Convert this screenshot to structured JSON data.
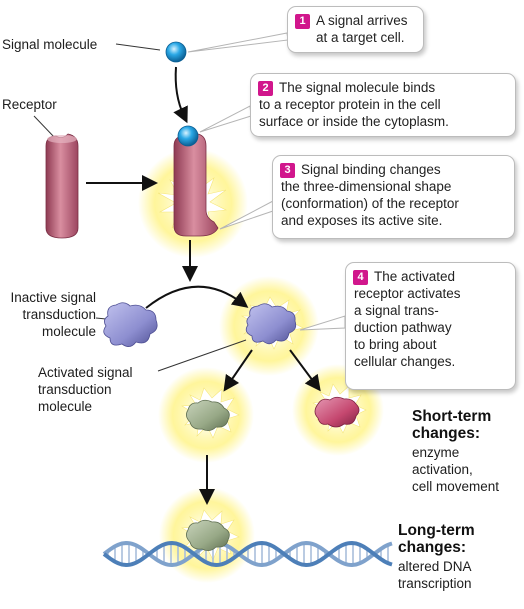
{
  "labels": {
    "signal_molecule": "Signal molecule",
    "receptor": "Receptor",
    "inactive_molecule": "Inactive signal\ntransduction\nmolecule",
    "activated_molecule": "Activated signal\ntransduction\nmolecule"
  },
  "steps": [
    {
      "num": "1",
      "text": "A signal arrives\nat a target cell."
    },
    {
      "num": "2",
      "text": "The signal molecule binds\nto a receptor protein in the cell\nsurface or inside the cytoplasm."
    },
    {
      "num": "3",
      "text": "Signal binding changes\nthe three-dimensional shape\n(conformation) of the receptor\nand exposes its active site."
    },
    {
      "num": "4",
      "text": "The activated\nreceptor activates\na signal trans-\nduction pathway\nto bring about\ncellular changes."
    }
  ],
  "short_term": {
    "heading": "Short-term\nchanges:",
    "text": "enzyme\nactivation,\ncell movement"
  },
  "long_term": {
    "heading": "Long-term\nchanges:",
    "text": "altered DNA\ntranscription"
  },
  "colors": {
    "badge": "#d1168c",
    "signal": "#2aa8e6",
    "receptor": "#c56a7e",
    "glow": "#fff27a",
    "transducer_inactive": "#8d8ed0",
    "transducer_green": "#97a886",
    "effector_pink": "#c5476f",
    "dna": "#4d7fb8"
  }
}
